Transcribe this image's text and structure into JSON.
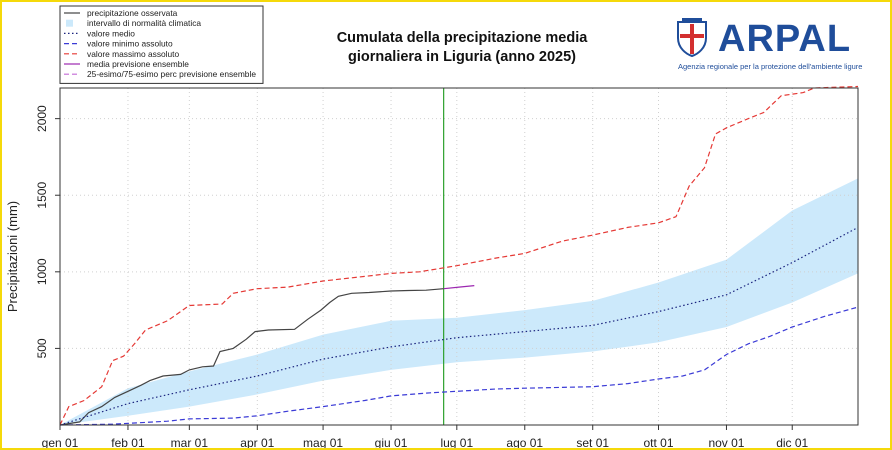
{
  "logo": {
    "name": "ARPAL",
    "subtitle": "Agenzia regionale per la protezione dell'ambiente ligure",
    "color": "#1f4d9a"
  },
  "chart_data": {
    "type": "line",
    "title_lines": [
      "Cumulata della precipitazione media",
      "giornaliera in Liguria (anno 2025)"
    ],
    "xlabel": "",
    "ylabel": "Precipitazioni (mm)",
    "x_unit": "day of year 2025",
    "xlim": [
      1,
      365
    ],
    "ylim": [
      0,
      2200
    ],
    "y_ticks": [
      500,
      1000,
      1500,
      2000
    ],
    "x_ticks": [
      {
        "label": "gen 01",
        "day": 1
      },
      {
        "label": "feb 01",
        "day": 32
      },
      {
        "label": "mar 01",
        "day": 60
      },
      {
        "label": "apr 01",
        "day": 91
      },
      {
        "label": "mag 01",
        "day": 121
      },
      {
        "label": "giu 01",
        "day": 152
      },
      {
        "label": "lug 01",
        "day": 182
      },
      {
        "label": "ago 01",
        "day": 213
      },
      {
        "label": "set 01",
        "day": 244
      },
      {
        "label": "ott 01",
        "day": 274
      },
      {
        "label": "nov 01",
        "day": 305
      },
      {
        "label": "dic 01",
        "day": 335
      }
    ],
    "grid": true,
    "current_day_marker": {
      "day": 176,
      "color": "#2ca02c"
    },
    "legend": {
      "position": "top-left",
      "entries": [
        {
          "label": "precipitazione osservata",
          "style": "solid",
          "color": "#444444"
        },
        {
          "label": "intervallo di normalità climatica",
          "style": "box",
          "color": "#cce9fb"
        },
        {
          "label": "valore medio",
          "style": "dotted",
          "color": "#1a237e"
        },
        {
          "label": "valore minimo assoluto",
          "style": "dashed",
          "color": "#3b3bd6"
        },
        {
          "label": "valore massimo assoluto",
          "style": "dashed",
          "color": "#e53935"
        },
        {
          "label": "media previsione ensemble",
          "style": "solid",
          "color": "#9c27b0"
        },
        {
          "label": "25-esimo/75-esimo perc previsione ensemble",
          "style": "dashed",
          "color": "#c36ad6"
        }
      ]
    },
    "series": [
      {
        "name": "precipitazione osservata",
        "color": "#444444",
        "style": "solid",
        "points": [
          [
            1,
            0
          ],
          [
            10,
            20
          ],
          [
            14,
            80
          ],
          [
            20,
            120
          ],
          [
            26,
            180
          ],
          [
            32,
            220
          ],
          [
            38,
            260
          ],
          [
            42,
            290
          ],
          [
            48,
            320
          ],
          [
            56,
            330
          ],
          [
            60,
            360
          ],
          [
            66,
            380
          ],
          [
            71,
            385
          ],
          [
            74,
            480
          ],
          [
            80,
            500
          ],
          [
            86,
            560
          ],
          [
            90,
            610
          ],
          [
            96,
            620
          ],
          [
            108,
            625
          ],
          [
            114,
            690
          ],
          [
            120,
            750
          ],
          [
            124,
            800
          ],
          [
            128,
            840
          ],
          [
            134,
            860
          ],
          [
            142,
            865
          ],
          [
            152,
            875
          ],
          [
            160,
            878
          ],
          [
            168,
            880
          ],
          [
            176,
            890
          ]
        ]
      },
      {
        "name": "valore medio",
        "color": "#1a237e",
        "style": "dotted",
        "points": [
          [
            1,
            0
          ],
          [
            32,
            140
          ],
          [
            60,
            230
          ],
          [
            91,
            320
          ],
          [
            121,
            430
          ],
          [
            152,
            510
          ],
          [
            182,
            570
          ],
          [
            213,
            610
          ],
          [
            244,
            650
          ],
          [
            274,
            740
          ],
          [
            305,
            850
          ],
          [
            335,
            1060
          ],
          [
            365,
            1290
          ]
        ]
      },
      {
        "name": "valore minimo assoluto",
        "color": "#3b3bd6",
        "style": "dashed",
        "points": [
          [
            1,
            0
          ],
          [
            25,
            5
          ],
          [
            50,
            25
          ],
          [
            60,
            40
          ],
          [
            80,
            45
          ],
          [
            91,
            60
          ],
          [
            105,
            90
          ],
          [
            121,
            120
          ],
          [
            140,
            160
          ],
          [
            152,
            190
          ],
          [
            170,
            210
          ],
          [
            182,
            220
          ],
          [
            200,
            235
          ],
          [
            213,
            240
          ],
          [
            244,
            250
          ],
          [
            260,
            270
          ],
          [
            274,
            300
          ],
          [
            285,
            320
          ],
          [
            295,
            360
          ],
          [
            305,
            460
          ],
          [
            315,
            530
          ],
          [
            325,
            580
          ],
          [
            335,
            640
          ],
          [
            350,
            710
          ],
          [
            365,
            770
          ]
        ]
      },
      {
        "name": "valore massimo assoluto",
        "color": "#e53935",
        "style": "dashed",
        "points": [
          [
            1,
            0
          ],
          [
            5,
            120
          ],
          [
            12,
            160
          ],
          [
            20,
            250
          ],
          [
            25,
            420
          ],
          [
            30,
            450
          ],
          [
            35,
            530
          ],
          [
            40,
            620
          ],
          [
            50,
            680
          ],
          [
            60,
            780
          ],
          [
            75,
            790
          ],
          [
            80,
            860
          ],
          [
            91,
            890
          ],
          [
            105,
            900
          ],
          [
            121,
            940
          ],
          [
            140,
            970
          ],
          [
            152,
            990
          ],
          [
            165,
            1000
          ],
          [
            182,
            1040
          ],
          [
            200,
            1090
          ],
          [
            213,
            1120
          ],
          [
            230,
            1200
          ],
          [
            244,
            1240
          ],
          [
            260,
            1290
          ],
          [
            274,
            1320
          ],
          [
            282,
            1360
          ],
          [
            288,
            1560
          ],
          [
            295,
            1680
          ],
          [
            300,
            1900
          ],
          [
            305,
            1940
          ],
          [
            315,
            2000
          ],
          [
            322,
            2040
          ],
          [
            330,
            2150
          ],
          [
            340,
            2170
          ],
          [
            345,
            2200
          ],
          [
            365,
            2210
          ]
        ]
      },
      {
        "name": "media previsione ensemble",
        "color": "#9c27b0",
        "style": "solid",
        "points": [
          [
            176,
            890
          ],
          [
            183,
            900
          ],
          [
            190,
            910
          ]
        ]
      }
    ],
    "band": {
      "name": "intervallo di normalità climatica",
      "color": "#cce9fb",
      "points": [
        [
          1,
          0,
          0
        ],
        [
          32,
          60,
          240
        ],
        [
          60,
          120,
          350
        ],
        [
          91,
          200,
          460
        ],
        [
          121,
          290,
          590
        ],
        [
          152,
          360,
          680
        ],
        [
          182,
          410,
          700
        ],
        [
          213,
          440,
          750
        ],
        [
          244,
          480,
          810
        ],
        [
          274,
          540,
          930
        ],
        [
          305,
          640,
          1080
        ],
        [
          335,
          800,
          1400
        ],
        [
          365,
          990,
          1610
        ]
      ]
    }
  }
}
